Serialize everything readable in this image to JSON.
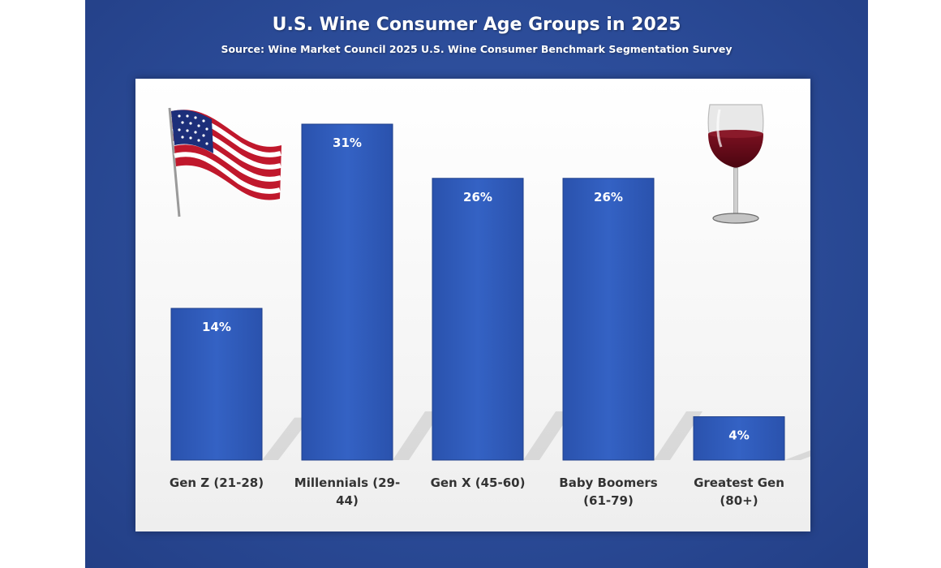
{
  "title": "U.S. Wine Consumer Age Groups in 2025",
  "subtitle": "Source: Wine Market Council 2025 U.S. Wine Consumer Benchmark Segmentation Survey",
  "colors": {
    "frame": "#2a4a96",
    "bar": "#2f5bb8",
    "bar_edge": "#1e3f8a",
    "panel": "#ffffff",
    "label_text": "#333333",
    "value_text": "#ffffff"
  },
  "decorations": {
    "left_icon": "us-flag-icon",
    "right_icon": "wine-glass-icon"
  },
  "chart_data": {
    "type": "bar",
    "title": "U.S. Wine Consumer Age Groups in 2025",
    "subtitle": "Source: Wine Market Council 2025 U.S. Wine Consumer Benchmark Segmentation Survey",
    "categories": [
      [
        "Gen Z (21-28)"
      ],
      [
        "Millennials (29-",
        "44)"
      ],
      [
        "Gen X (45-60)"
      ],
      [
        "Baby Boomers",
        "(61-79)"
      ],
      [
        "Greatest Gen",
        "(80+)"
      ]
    ],
    "values": [
      14,
      31,
      26,
      26,
      4
    ],
    "value_labels": [
      "14%",
      "31%",
      "26%",
      "26%",
      "4%"
    ],
    "unit": "%",
    "ylim": [
      0,
      35
    ],
    "grid": false,
    "legend": "none"
  }
}
